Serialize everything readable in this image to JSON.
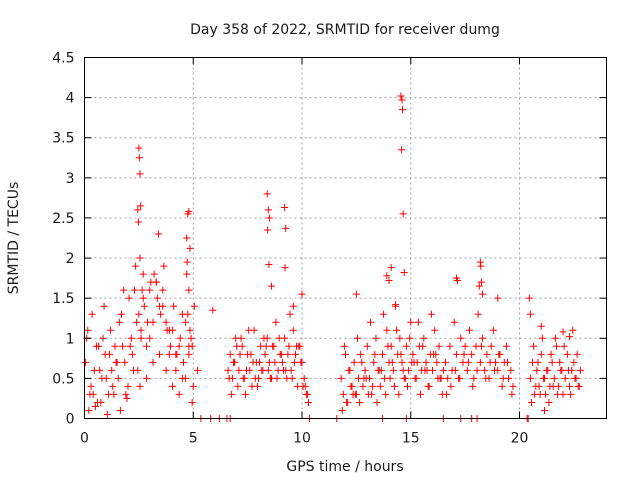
{
  "chart_data": {
    "type": "scatter",
    "title": "Day 358 of 2022, SRMTID for receiver dumg",
    "xlabel": "GPS time / hours",
    "ylabel": "SRMTID / TECUs",
    "xlim": [
      0,
      24
    ],
    "ylim": [
      0,
      4.5
    ],
    "xticks": [
      "0",
      "5",
      "10",
      "15",
      "20"
    ],
    "yticks": [
      "0",
      "0.5",
      "1",
      "1.5",
      "2",
      "2.5",
      "3",
      "3.5",
      "4",
      "4.5"
    ],
    "grid": true,
    "marker": "+",
    "color": "#ff0000",
    "series": [
      {
        "name": "SRMTID",
        "x": [
          0.05,
          0.15,
          0.3,
          0.4,
          0.55,
          0.7,
          0.85,
          1.0,
          1.15,
          1.3,
          1.45,
          1.6,
          1.75,
          1.9,
          2.05,
          2.2,
          2.35,
          2.5,
          2.55,
          2.6,
          2.65,
          2.75,
          2.9,
          3.05,
          3.2,
          3.35,
          3.5,
          3.65,
          3.8,
          3.95,
          4.1,
          4.25,
          4.4,
          4.55,
          4.7,
          4.75,
          4.8,
          4.85,
          4.95,
          5.05,
          5.2,
          0.1,
          0.25,
          0.45,
          0.6,
          0.8,
          0.95,
          1.1,
          1.25,
          1.4,
          1.55,
          1.7,
          1.85,
          2.0,
          2.15,
          2.3,
          2.45,
          2.6,
          2.7,
          2.85,
          3.0,
          3.15,
          3.3,
          3.45,
          3.6,
          3.75,
          3.9,
          4.05,
          4.2,
          4.35,
          4.5,
          4.65,
          4.8,
          4.9,
          5.0,
          0.2,
          0.5,
          0.75,
          1.05,
          1.35,
          1.65,
          1.95,
          2.25,
          2.55,
          2.85,
          3.15,
          3.45,
          3.75,
          4.05,
          4.35,
          4.65,
          4.95,
          2.5,
          2.52,
          2.55,
          2.58,
          2.45,
          2.48,
          3.4,
          4.75,
          4.8,
          4.85,
          4.7,
          4.72,
          0.35,
          0.65,
          0.9,
          1.2,
          1.5,
          1.8,
          2.1,
          2.4,
          2.7,
          3.0,
          3.3,
          3.6,
          3.9,
          4.2,
          4.5,
          4.8,
          6.6,
          6.7,
          6.8,
          6.9,
          7.0,
          7.1,
          7.2,
          7.3,
          7.4,
          7.5,
          7.6,
          7.7,
          7.8,
          7.9,
          8.0,
          8.1,
          8.2,
          8.3,
          8.4,
          8.5,
          8.6,
          8.7,
          8.8,
          8.9,
          9.0,
          9.1,
          9.2,
          9.3,
          9.4,
          9.5,
          9.6,
          9.7,
          9.8,
          9.9,
          10.0,
          10.1,
          10.2,
          10.3,
          6.65,
          6.85,
          7.05,
          7.25,
          7.45,
          7.65,
          7.85,
          8.05,
          8.25,
          8.45,
          8.65,
          8.85,
          9.05,
          9.25,
          9.45,
          9.65,
          9.85,
          10.05,
          10.25,
          6.75,
          6.95,
          7.15,
          7.35,
          7.55,
          7.75,
          7.95,
          8.15,
          8.35,
          8.55,
          8.75,
          8.95,
          9.15,
          9.35,
          9.55,
          9.75,
          9.95,
          10.15,
          8.4,
          8.45,
          8.5,
          8.42,
          8.48,
          9.2,
          9.25,
          9.22,
          8.6,
          9.6,
          10.0,
          5.9,
          11.8,
          11.9,
          12.0,
          12.1,
          12.2,
          12.3,
          12.4,
          12.5,
          12.6,
          12.7,
          12.8,
          12.9,
          13.0,
          13.1,
          13.2,
          13.3,
          13.4,
          13.5,
          13.6,
          13.7,
          13.8,
          13.9,
          14.0,
          14.1,
          14.2,
          14.3,
          14.4,
          14.5,
          14.6,
          14.7,
          14.8,
          14.9,
          15.0,
          15.1,
          15.2,
          15.3,
          15.4,
          15.5,
          15.6,
          15.7,
          15.8,
          15.9,
          16.0,
          16.1,
          16.2,
          16.3,
          16.4,
          16.5,
          11.85,
          12.05,
          12.25,
          12.45,
          12.65,
          12.85,
          13.05,
          13.25,
          13.45,
          13.65,
          13.85,
          14.05,
          14.25,
          14.45,
          14.65,
          14.85,
          15.05,
          15.25,
          15.45,
          15.65,
          15.85,
          16.05,
          16.25,
          16.45,
          11.95,
          12.15,
          12.35,
          12.55,
          12.75,
          12.95,
          13.15,
          13.35,
          13.55,
          13.75,
          13.95,
          14.15,
          14.35,
          14.55,
          14.75,
          14.95,
          15.15,
          15.35,
          15.55,
          15.75,
          15.95,
          16.15,
          16.35,
          14.55,
          14.6,
          14.62,
          14.58,
          14.65,
          14.3,
          14.1,
          13.9,
          14.0,
          12.5,
          14.7,
          16.6,
          16.7,
          16.8,
          16.9,
          17.0,
          17.1,
          17.2,
          17.3,
          17.4,
          17.5,
          17.6,
          17.7,
          17.8,
          17.9,
          18.0,
          18.1,
          18.2,
          18.3,
          18.4,
          18.5,
          18.6,
          18.7,
          18.8,
          18.9,
          19.0,
          19.1,
          19.2,
          19.3,
          19.4,
          19.5,
          19.6,
          19.7,
          16.65,
          16.85,
          17.05,
          17.25,
          17.45,
          17.65,
          17.85,
          18.05,
          18.25,
          18.45,
          18.65,
          18.85,
          19.05,
          19.25,
          19.45,
          19.65,
          18.2,
          18.22,
          18.25,
          18.15,
          18.3,
          17.1,
          17.15,
          19.0,
          20.5,
          20.6,
          20.7,
          20.8,
          20.9,
          21.0,
          21.1,
          21.2,
          21.3,
          21.4,
          21.5,
          21.6,
          21.7,
          21.8,
          21.9,
          22.0,
          22.1,
          22.2,
          22.3,
          22.4,
          22.5,
          22.6,
          22.7,
          22.8,
          20.55,
          20.75,
          20.95,
          21.15,
          21.35,
          21.55,
          21.75,
          21.95,
          21.15,
          22.35,
          22.55,
          22.75,
          20.65,
          20.85,
          21.05,
          21.25,
          21.45,
          21.65,
          21.85,
          22.05,
          22.25,
          22.45,
          22.65,
          20.45,
          20.5,
          21.0,
          22.0,
          22.3,
          5.35,
          5.8,
          6.2,
          6.55,
          6.7,
          10.35,
          11.6,
          13.7,
          14.8,
          16.5,
          17.3,
          17.8,
          18.05,
          20.35,
          20.4
        ],
        "y": [
          0.7,
          1.1,
          0.4,
          0.3,
          0.9,
          0.6,
          1.0,
          0.5,
          0.8,
          0.4,
          0.7,
          1.2,
          0.9,
          0.3,
          1.5,
          0.8,
          1.9,
          1.3,
          2.0,
          1.0,
          1.6,
          1.4,
          1.2,
          1.7,
          1.8,
          1.5,
          1.3,
          1.9,
          1.1,
          0.9,
          1.4,
          0.8,
          1.0,
          0.7,
          1.8,
          1.3,
          1.6,
          1.1,
          0.9,
          1.4,
          0.6,
          1.0,
          0.3,
          0.6,
          0.2,
          0.5,
          0.8,
          0.3,
          0.6,
          0.9,
          0.5,
          1.3,
          0.7,
          0.4,
          1.0,
          1.6,
          0.6,
          1.1,
          1.8,
          0.9,
          1.6,
          1.2,
          1.7,
          1.4,
          1.6,
          1.2,
          0.8,
          1.1,
          0.6,
          0.9,
          0.5,
          1.2,
          0.8,
          1.0,
          0.4,
          0.1,
          0.15,
          0.2,
          0.05,
          0.3,
          0.1,
          0.25,
          0.6,
          0.4,
          0.5,
          0.7,
          0.8,
          0.6,
          0.4,
          0.3,
          0.5,
          0.2,
          3.37,
          3.25,
          3.05,
          2.65,
          2.6,
          2.45,
          2.3,
          2.55,
          2.58,
          2.12,
          2.25,
          1.95,
          1.3,
          0.9,
          1.4,
          1.1,
          0.7,
          1.6,
          0.9,
          1.2,
          1.5,
          1.0,
          1.7,
          1.4,
          1.1,
          0.8,
          1.3,
          0.9,
          0.6,
          0.8,
          0.5,
          0.7,
          0.9,
          0.6,
          1.0,
          0.5,
          0.3,
          0.8,
          0.6,
          0.4,
          1.1,
          0.7,
          0.5,
          0.9,
          0.6,
          0.8,
          1.0,
          0.7,
          0.5,
          0.9,
          1.2,
          0.6,
          0.8,
          0.7,
          1.0,
          0.5,
          0.9,
          0.6,
          1.1,
          0.8,
          0.4,
          0.9,
          0.7,
          0.5,
          0.3,
          0.2,
          0.5,
          0.7,
          0.4,
          0.9,
          0.6,
          0.8,
          0.5,
          0.7,
          1.0,
          0.6,
          0.9,
          0.5,
          0.8,
          0.6,
          1.3,
          0.7,
          0.9,
          0.4,
          0.3,
          0.3,
          1.0,
          0.8,
          0.5,
          1.1,
          0.7,
          0.4,
          0.6,
          0.9,
          0.5,
          0.7,
          1.0,
          0.6,
          0.8,
          0.5,
          0.9,
          0.7,
          0.4,
          2.8,
          2.6,
          2.5,
          2.35,
          1.92,
          2.63,
          2.37,
          1.88,
          1.65,
          1.4,
          1.55,
          1.35,
          0.5,
          0.3,
          0.8,
          0.2,
          0.6,
          0.4,
          0.7,
          0.3,
          0.5,
          0.8,
          0.4,
          0.6,
          0.9,
          0.5,
          0.3,
          0.7,
          1.0,
          0.6,
          0.4,
          0.8,
          0.5,
          1.1,
          0.7,
          0.9,
          0.6,
          1.4,
          0.8,
          1.0,
          0.7,
          0.5,
          0.9,
          0.6,
          1.2,
          0.8,
          0.5,
          0.7,
          0.9,
          0.6,
          1.0,
          0.7,
          0.4,
          0.8,
          0.6,
          1.1,
          0.7,
          0.9,
          0.5,
          0.6,
          0.1,
          0.2,
          0.4,
          0.3,
          0.2,
          0.5,
          0.3,
          0.4,
          0.2,
          0.6,
          0.3,
          0.5,
          0.4,
          0.3,
          0.6,
          0.4,
          0.7,
          0.5,
          0.3,
          0.6,
          0.4,
          0.8,
          0.5,
          0.3,
          0.9,
          0.6,
          0.3,
          1.0,
          0.7,
          0.5,
          1.2,
          0.8,
          0.6,
          1.3,
          0.9,
          0.7,
          1.1,
          0.8,
          0.5,
          1.0,
          0.7,
          1.2,
          0.9,
          0.6,
          1.3,
          0.8,
          0.5,
          4.02,
          3.97,
          3.85,
          3.35,
          2.55,
          1.42,
          1.88,
          1.78,
          1.72,
          1.55,
          1.82,
          0.7,
          0.5,
          0.9,
          0.6,
          1.2,
          0.8,
          0.5,
          1.0,
          0.7,
          0.9,
          0.6,
          1.1,
          0.8,
          0.5,
          0.9,
          1.3,
          0.7,
          1.0,
          0.6,
          0.8,
          0.5,
          0.9,
          1.1,
          0.7,
          0.6,
          0.8,
          0.4,
          0.7,
          0.9,
          0.5,
          0.6,
          0.4,
          0.3,
          0.4,
          0.6,
          0.5,
          0.8,
          0.7,
          0.4,
          0.6,
          0.9,
          0.5,
          0.7,
          0.6,
          0.8,
          0.5,
          0.7,
          0.3,
          1.95,
          1.9,
          1.7,
          1.65,
          1.55,
          1.75,
          1.72,
          1.5,
          0.5,
          0.7,
          0.3,
          0.6,
          0.4,
          0.8,
          0.5,
          0.3,
          0.6,
          0.4,
          0.7,
          0.5,
          0.9,
          0.4,
          0.6,
          0.3,
          0.5,
          0.8,
          0.4,
          0.6,
          0.7,
          0.5,
          0.4,
          0.6,
          0.2,
          0.4,
          0.3,
          0.5,
          0.2,
          0.4,
          0.3,
          0.6,
          0.1,
          0.3,
          0.5,
          0.4,
          0.9,
          0.7,
          1.0,
          0.6,
          0.8,
          1.0,
          0.7,
          0.9,
          0.6,
          1.1,
          0.8,
          1.5,
          1.3,
          1.15,
          1.08,
          1.02,
          0.0,
          0.0,
          0.0,
          0.0,
          0.0,
          0.0,
          0.0,
          0.0,
          0.0,
          0.0,
          0.0,
          0.0,
          0.0,
          0.0,
          0.0
        ]
      }
    ]
  }
}
